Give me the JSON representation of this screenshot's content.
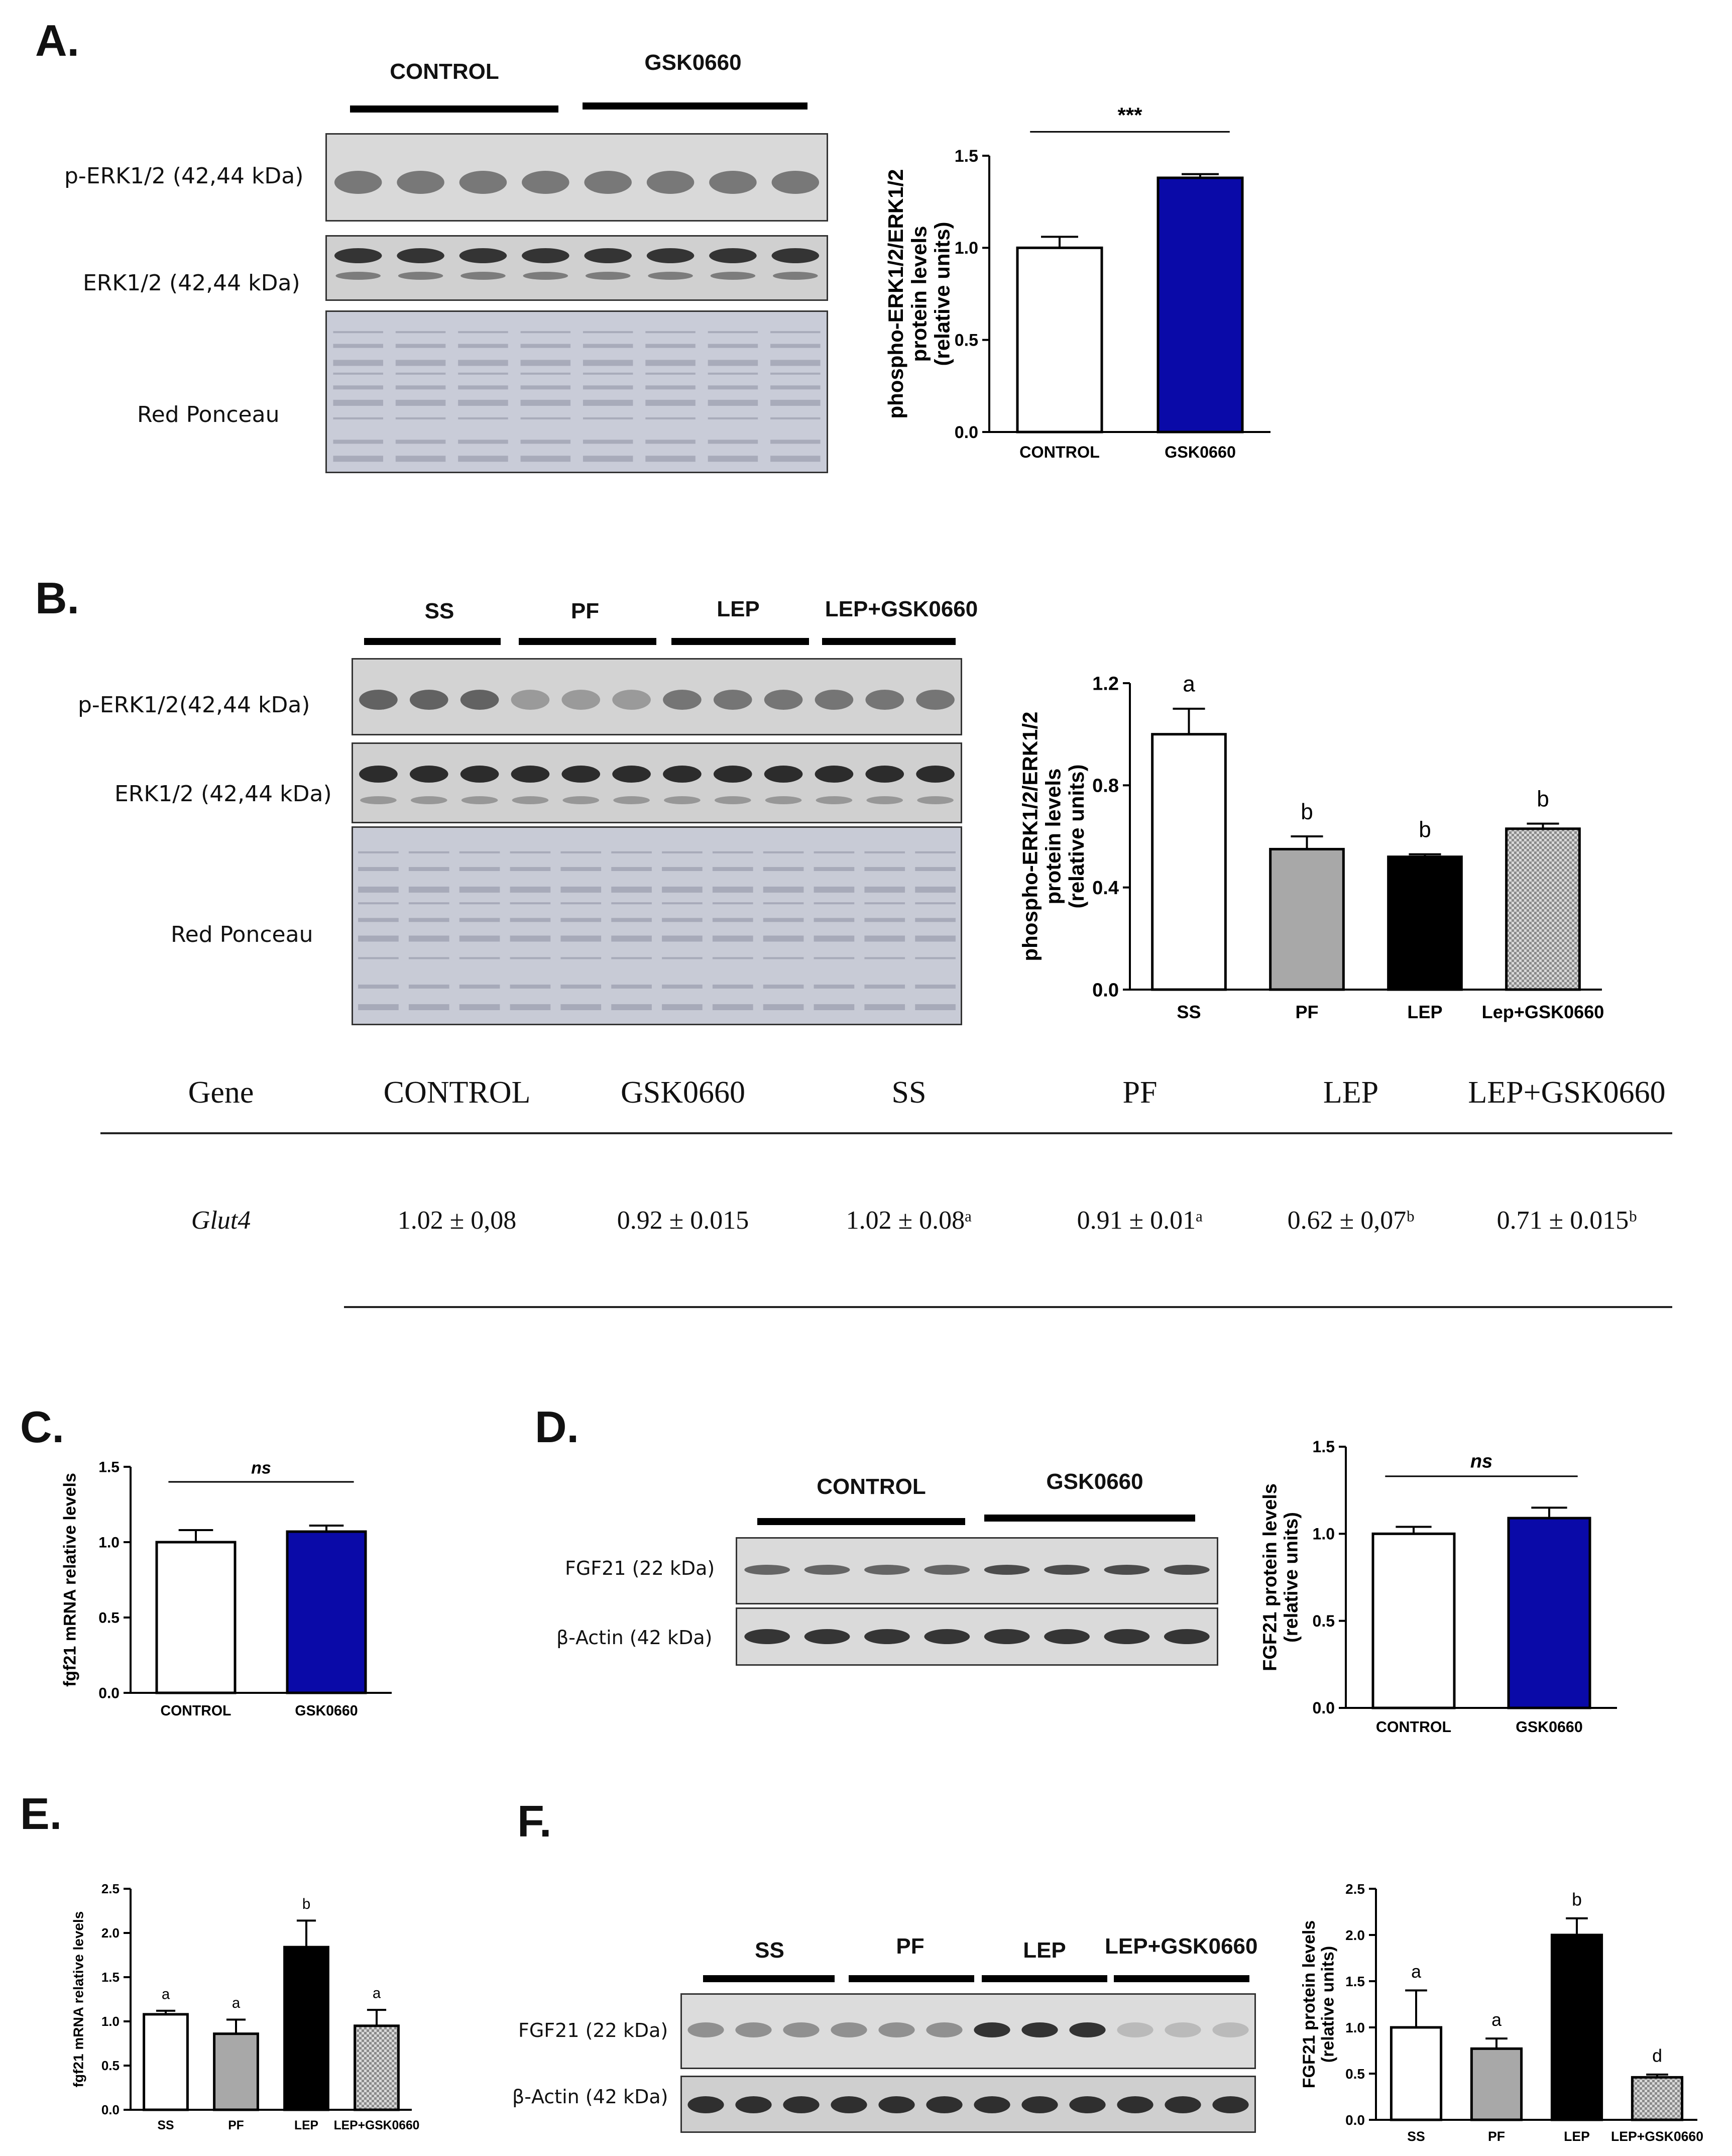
{
  "panels": {
    "A": {
      "letter": "A.",
      "groups": [
        "CONTROL",
        "GSK0660"
      ],
      "rows": [
        "p-ERK1/2 (42,44 kDa)",
        "ERK1/2 (42,44 kDa)",
        "Red Ponceau"
      ]
    },
    "B": {
      "letter": "B.",
      "groups": [
        "SS",
        "PF",
        "LEP",
        "LEP+GSK0660"
      ],
      "rows": [
        "p-ERK1/2(42,44 kDa)",
        "ERK1/2 (42,44 kDa)",
        "Red Ponceau"
      ]
    },
    "C": {
      "letter": "C."
    },
    "D": {
      "letter": "D.",
      "groups": [
        "CONTROL",
        "GSK0660"
      ],
      "rows": [
        "FGF21 (22 kDa)",
        "β-Actin (42 kDa)"
      ]
    },
    "E": {
      "letter": "E."
    },
    "F": {
      "letter": "F.",
      "groups": [
        "SS",
        "PF",
        "LEP",
        "LEP+GSK0660"
      ],
      "rows": [
        "FGF21 (22 kDa)",
        "β-Actin (42 kDa)"
      ]
    }
  },
  "table": {
    "headers": [
      "Gene",
      "CONTROL",
      "GSK0660",
      "SS",
      "PF",
      "LEP",
      "LEP+GSK0660"
    ],
    "rows": [
      {
        "gene": "Glut4",
        "values": [
          "1.02 ± 0,08",
          "0.92 ± 0.015",
          "1.02 ± 0.08ᵃ",
          "0.91 ± 0.01ᵃ",
          "0.62 ± 0,07ᵇ",
          "0.71 ± 0.015ᵇ"
        ]
      }
    ]
  },
  "chart_data": [
    {
      "id": "A",
      "type": "bar",
      "categories": [
        "CONTROL",
        "GSK0660"
      ],
      "values": [
        1.0,
        1.38
      ],
      "errors": [
        0.06,
        0.02
      ],
      "colors": [
        "#ffffff",
        "#0a0aa8"
      ],
      "patterns": [
        "solid",
        "solid"
      ],
      "ylabel": [
        "phospho-ERK1/2/ERK1/2",
        "protein levels",
        "(relative units)"
      ],
      "ylim": [
        0,
        1.5
      ],
      "yticks": [
        0.0,
        0.5,
        1.0,
        1.5
      ],
      "tick_labels": [
        "0.0",
        "0.5",
        "1.0",
        "1.5"
      ],
      "bar_labels": [
        "",
        ""
      ],
      "bracket": {
        "from": 0,
        "to": 1,
        "label": "***",
        "italic": false,
        "level": 1.63
      }
    },
    {
      "id": "B",
      "type": "bar",
      "categories": [
        "SS",
        "PF",
        "LEP",
        "Lep+GSK0660"
      ],
      "values": [
        1.0,
        0.55,
        0.52,
        0.63
      ],
      "errors": [
        0.1,
        0.05,
        0.01,
        0.02
      ],
      "colors": [
        "#ffffff",
        "#a8a8a8",
        "#000000",
        "#c4c4c4"
      ],
      "patterns": [
        "solid",
        "solid",
        "solid",
        "checker"
      ],
      "ylabel": [
        "phospho-ERK1/2/ERK1/2",
        "protein levels",
        "(relative units)"
      ],
      "ylim": [
        0,
        1.2
      ],
      "yticks": [
        0.0,
        0.4,
        0.8,
        1.2
      ],
      "tick_labels": [
        "0.0",
        "0.4",
        "0.8",
        "1.2"
      ],
      "bar_labels": [
        "a",
        "b",
        "b",
        "b"
      ]
    },
    {
      "id": "C",
      "type": "bar",
      "categories": [
        "CONTROL",
        "GSK0660"
      ],
      "values": [
        1.0,
        1.07
      ],
      "errors": [
        0.08,
        0.04
      ],
      "colors": [
        "#ffffff",
        "#0a0aa8"
      ],
      "patterns": [
        "solid",
        "solid"
      ],
      "ylabel": [
        "fgf21 mRNA relative levels"
      ],
      "ylim": [
        0,
        1.5
      ],
      "yticks": [
        0.0,
        0.5,
        1.0,
        1.5
      ],
      "tick_labels": [
        "0.0",
        "0.5",
        "1.0",
        "1.5"
      ],
      "bar_labels": [
        "",
        ""
      ],
      "bracket": {
        "from": 0,
        "to": 1,
        "label": "ns",
        "italic": true,
        "level": 1.4
      }
    },
    {
      "id": "D",
      "type": "bar",
      "categories": [
        "CONTROL",
        "GSK0660"
      ],
      "values": [
        1.0,
        1.09
      ],
      "errors": [
        0.04,
        0.06
      ],
      "colors": [
        "#ffffff",
        "#0a0aa8"
      ],
      "patterns": [
        "solid",
        "solid"
      ],
      "ylabel": [
        "FGF21 protein levels",
        "(relative units)"
      ],
      "ylim": [
        0,
        1.5
      ],
      "yticks": [
        0.0,
        0.5,
        1.0,
        1.5
      ],
      "tick_labels": [
        "0.0",
        "0.5",
        "1.0",
        "1.5"
      ],
      "bar_labels": [
        "",
        ""
      ],
      "bracket": {
        "from": 0,
        "to": 1,
        "label": "ns",
        "italic": true,
        "level": 1.33
      }
    },
    {
      "id": "E",
      "type": "bar",
      "categories": [
        "SS",
        "PF",
        "LEP",
        "LEP+GSK0660"
      ],
      "values": [
        1.08,
        0.86,
        1.84,
        0.95
      ],
      "errors": [
        0.04,
        0.16,
        0.3,
        0.18
      ],
      "colors": [
        "#ffffff",
        "#a8a8a8",
        "#000000",
        "#c4c4c4"
      ],
      "patterns": [
        "solid",
        "solid",
        "solid",
        "checker"
      ],
      "ylabel": [
        "fgf21 mRNA relative levels"
      ],
      "ylim": [
        0,
        2.5
      ],
      "yticks": [
        0.0,
        0.5,
        1.0,
        1.5,
        2.0,
        2.5
      ],
      "tick_labels": [
        "0.0",
        "0.5",
        "1.0",
        "1.5",
        "2.0",
        "2.5"
      ],
      "bar_labels": [
        "a",
        "a",
        "b",
        "a"
      ]
    },
    {
      "id": "F",
      "type": "bar",
      "categories": [
        "SS",
        "PF",
        "LEP",
        "LEP+GSK0660"
      ],
      "values": [
        1.0,
        0.77,
        2.0,
        0.46
      ],
      "errors": [
        0.4,
        0.11,
        0.18,
        0.03
      ],
      "colors": [
        "#ffffff",
        "#a8a8a8",
        "#000000",
        "#c4c4c4"
      ],
      "patterns": [
        "solid",
        "solid",
        "solid",
        "checker"
      ],
      "ylabel": [
        "FGF21 protein levels",
        "(relative units)"
      ],
      "ylim": [
        0,
        2.5
      ],
      "yticks": [
        0.0,
        0.5,
        1.0,
        1.5,
        2.0,
        2.5
      ],
      "tick_labels": [
        "0.0",
        "0.5",
        "1.0",
        "1.5",
        "2.0",
        "2.5"
      ],
      "bar_labels": [
        "a",
        "a",
        "b",
        "d"
      ]
    }
  ]
}
